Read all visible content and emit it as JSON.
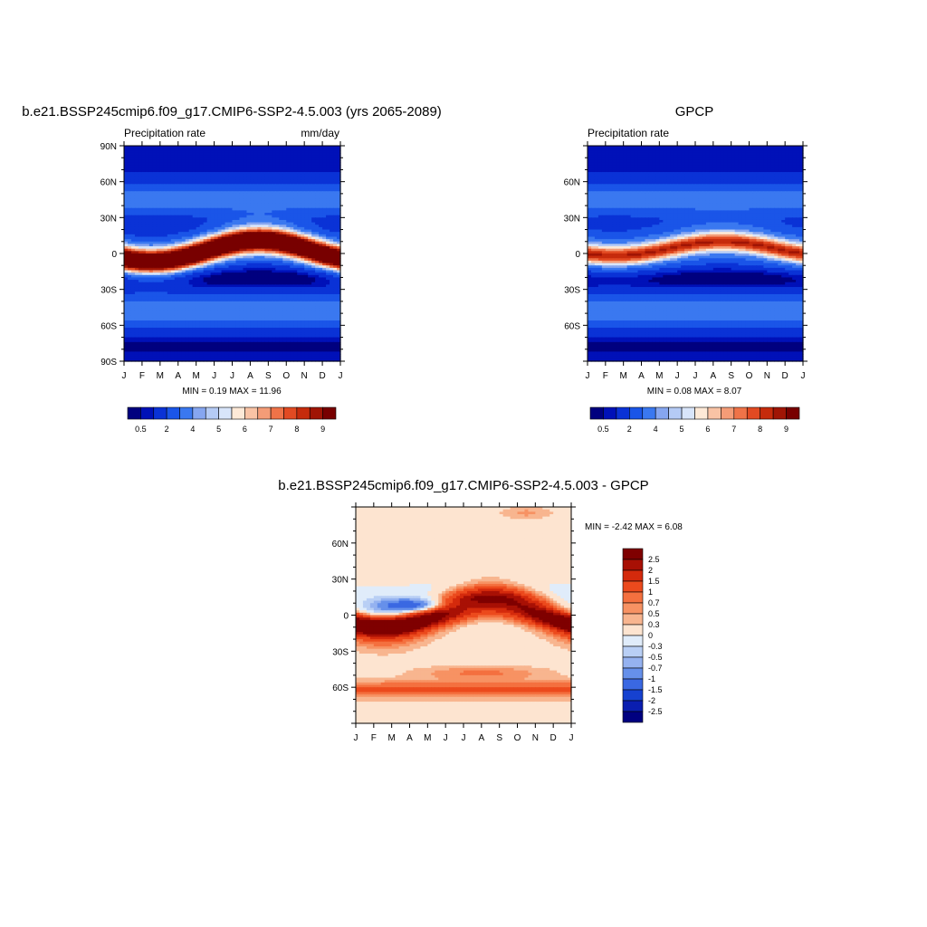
{
  "chart_data": [
    {
      "type": "heatmap",
      "title": "b.e21.BSSP245cmip6.f09_g17.CMIP6-SSP2-4.5.003 (yrs 2065-2089)",
      "left_label": "Precipitation rate",
      "right_label": "mm/day",
      "x_ticks": [
        "J",
        "F",
        "M",
        "A",
        "M",
        "J",
        "J",
        "A",
        "S",
        "O",
        "N",
        "D",
        "J"
      ],
      "y_ticks": [
        {
          "value": 90,
          "label": "90N"
        },
        {
          "value": 60,
          "label": "60N"
        },
        {
          "value": 30,
          "label": "30N"
        },
        {
          "value": 0,
          "label": "0"
        },
        {
          "value": -30,
          "label": "30S"
        },
        {
          "value": -60,
          "label": "60S"
        },
        {
          "value": -90,
          "label": "90S"
        }
      ],
      "ylim": [
        -90,
        90
      ],
      "minmax_text": "MIN =   0.19 MAX =  11.96",
      "min": 0.19,
      "max": 11.96,
      "itcz": {
        "amplitude": 9,
        "mean_lat": 2,
        "peak_month": 7.5,
        "width": 7
      },
      "colorbar": {
        "orientation": "horizontal",
        "labels": [
          "0.5",
          "2",
          "4",
          "5",
          "6",
          "7",
          "8",
          "9"
        ],
        "colors": [
          "#00007f",
          "#0011b8",
          "#0a32d6",
          "#1a55e8",
          "#3a78f0",
          "#86a6f0",
          "#b5cbf5",
          "#d8e5fa",
          "#fde9d7",
          "#f9c3a5",
          "#f49c77",
          "#ef7348",
          "#e24a22",
          "#c62b0c",
          "#a01505",
          "#780000"
        ]
      }
    },
    {
      "type": "heatmap",
      "title": "GPCP",
      "left_label": "Precipitation rate",
      "x_ticks": [
        "J",
        "F",
        "M",
        "A",
        "M",
        "J",
        "J",
        "A",
        "S",
        "O",
        "N",
        "D",
        "J"
      ],
      "y_ticks": [
        {
          "value": 60,
          "label": "60N"
        },
        {
          "value": 30,
          "label": "30N"
        },
        {
          "value": 0,
          "label": "0"
        },
        {
          "value": -30,
          "label": "30S"
        },
        {
          "value": -60,
          "label": "60S"
        }
      ],
      "ylim": [
        -90,
        90
      ],
      "minmax_text": "MIN =   0.08 MAX =   8.07",
      "min": 0.08,
      "max": 8.07,
      "itcz": {
        "amplitude": 6,
        "mean_lat": 4,
        "peak_month": 7.5,
        "width": 6
      },
      "colorbar": {
        "orientation": "horizontal",
        "labels": [
          "0.5",
          "2",
          "4",
          "5",
          "6",
          "7",
          "8",
          "9"
        ],
        "colors": [
          "#00007f",
          "#0011b8",
          "#0a32d6",
          "#1a55e8",
          "#3a78f0",
          "#86a6f0",
          "#b5cbf5",
          "#d8e5fa",
          "#fde9d7",
          "#f9c3a5",
          "#f49c77",
          "#ef7348",
          "#e24a22",
          "#c62b0c",
          "#a01505",
          "#780000"
        ]
      }
    },
    {
      "type": "heatmap",
      "title": "b.e21.BSSP245cmip6.f09_g17.CMIP6-SSP2-4.5.003 - GPCP",
      "x_ticks": [
        "J",
        "F",
        "M",
        "A",
        "M",
        "J",
        "J",
        "A",
        "S",
        "O",
        "N",
        "D",
        "J"
      ],
      "y_ticks": [
        {
          "value": 60,
          "label": "60N"
        },
        {
          "value": 30,
          "label": "30N"
        },
        {
          "value": 0,
          "label": "0"
        },
        {
          "value": -30,
          "label": "30S"
        },
        {
          "value": -60,
          "label": "60S"
        }
      ],
      "ylim": [
        -90,
        90
      ],
      "minmax_text": "MIN =  -2.42 MAX =   6.08",
      "min": -2.42,
      "max": 6.08,
      "colorbar": {
        "orientation": "vertical",
        "labels_top_to_bottom": [
          "2.5",
          "2",
          "1.5",
          "1",
          "0.7",
          "0.5",
          "0.3",
          "0",
          "-0.3",
          "-0.5",
          "-0.7",
          "-1",
          "-1.5",
          "-2",
          "-2.5"
        ],
        "colors_top_to_bottom": [
          "#7f0000",
          "#a81005",
          "#d42a0c",
          "#ec4a1d",
          "#f4703f",
          "#f79263",
          "#f8b58f",
          "#fde4d0",
          "#e0ecfa",
          "#b9cff5",
          "#95b2f0",
          "#6690ea",
          "#3a68e2",
          "#1641d0",
          "#0a1eb0",
          "#000080"
        ]
      }
    }
  ]
}
